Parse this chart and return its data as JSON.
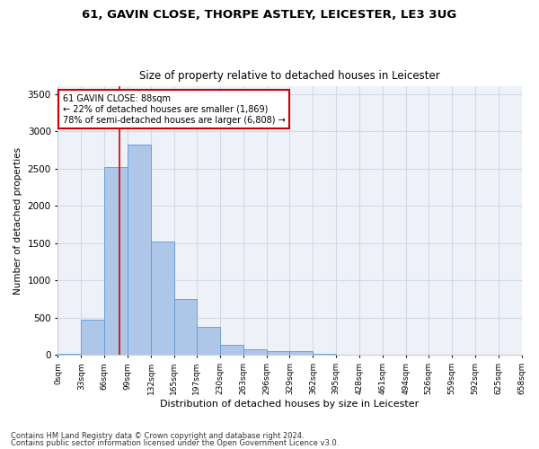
{
  "title1": "61, GAVIN CLOSE, THORPE ASTLEY, LEICESTER, LE3 3UG",
  "title2": "Size of property relative to detached houses in Leicester",
  "xlabel": "Distribution of detached houses by size in Leicester",
  "ylabel": "Number of detached properties",
  "bar_values": [
    20,
    480,
    2520,
    2820,
    1520,
    750,
    380,
    135,
    75,
    55,
    55,
    20,
    0,
    0,
    0,
    0,
    0,
    0,
    0,
    0
  ],
  "bin_edges": [
    0,
    33,
    66,
    99,
    132,
    165,
    197,
    230,
    263,
    296,
    329,
    362,
    395,
    428,
    461,
    494,
    526,
    559,
    592,
    625,
    658
  ],
  "tick_labels": [
    "0sqm",
    "33sqm",
    "66sqm",
    "99sqm",
    "132sqm",
    "165sqm",
    "197sqm",
    "230sqm",
    "263sqm",
    "296sqm",
    "329sqm",
    "362sqm",
    "395sqm",
    "428sqm",
    "461sqm",
    "494sqm",
    "526sqm",
    "559sqm",
    "592sqm",
    "625sqm",
    "658sqm"
  ],
  "bar_color": "#aec6e8",
  "bar_edge_color": "#5b9bd5",
  "grid_color": "#d0d8e8",
  "background_color": "#eef2f8",
  "vline_x": 88,
  "vline_color": "#cc0000",
  "annotation_line1": "61 GAVIN CLOSE: 88sqm",
  "annotation_line2": "← 22% of detached houses are smaller (1,869)",
  "annotation_line3": "78% of semi-detached houses are larger (6,808) →",
  "annotation_box_color": "#cc0000",
  "ylim": [
    0,
    3600
  ],
  "yticks": [
    0,
    500,
    1000,
    1500,
    2000,
    2500,
    3000,
    3500
  ],
  "footer1": "Contains HM Land Registry data © Crown copyright and database right 2024.",
  "footer2": "Contains public sector information licensed under the Open Government Licence v3.0."
}
